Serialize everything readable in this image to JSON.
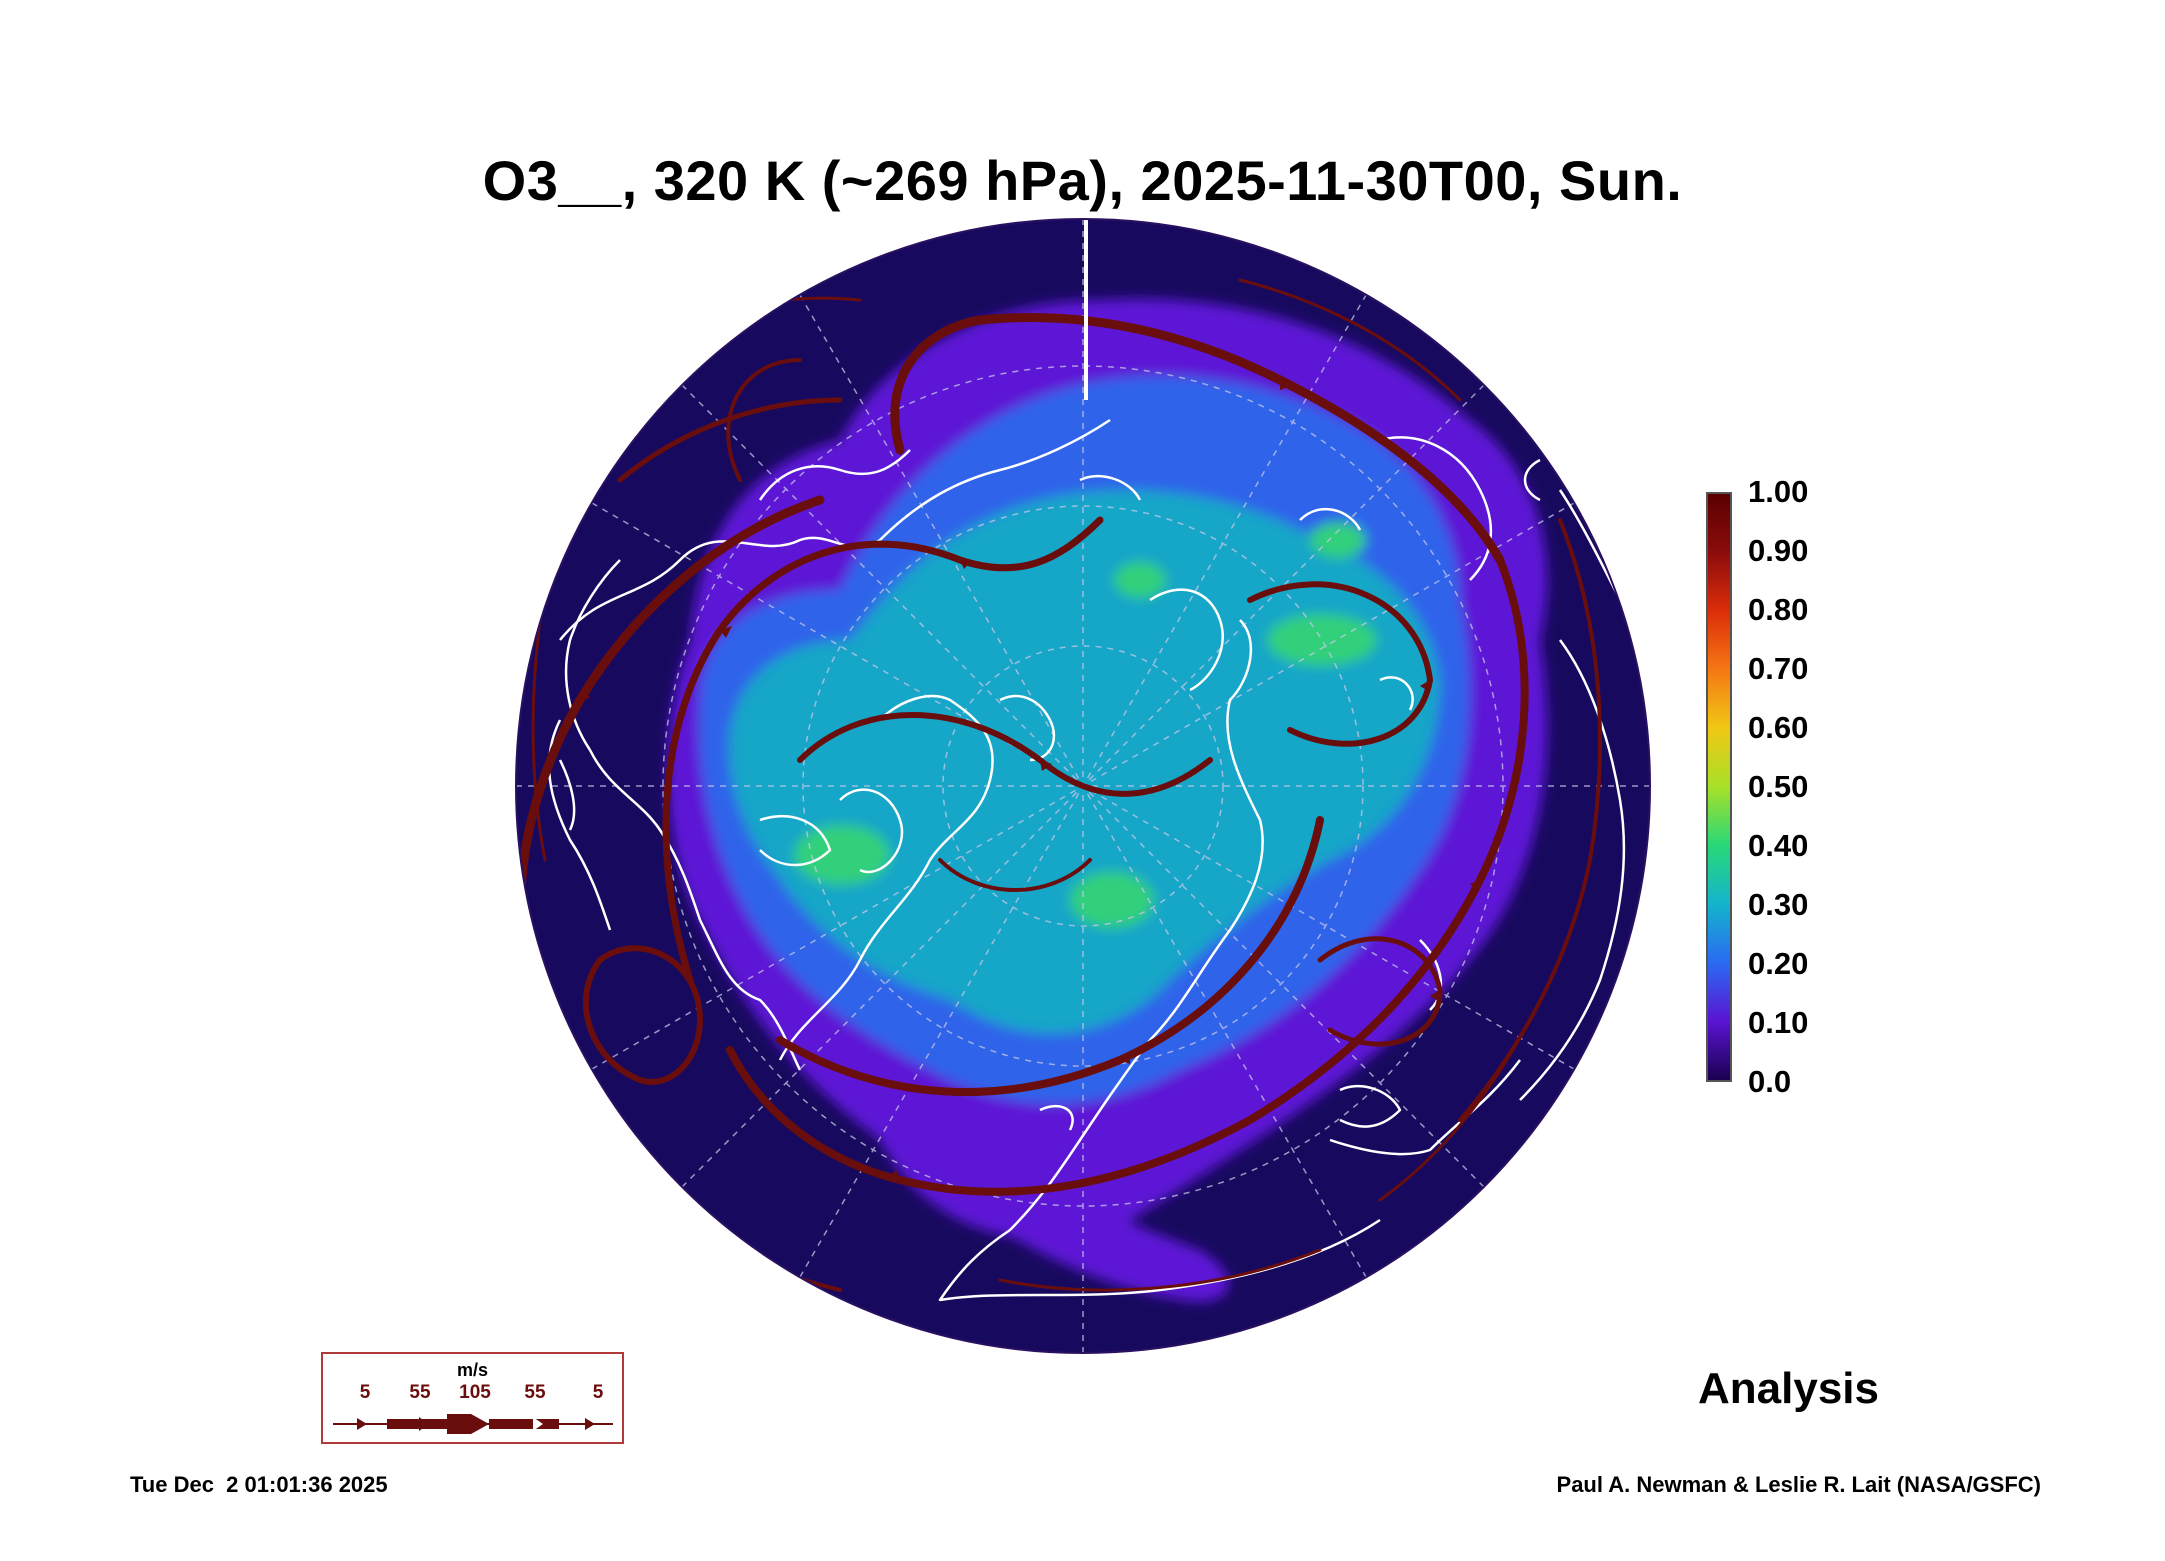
{
  "header": {
    "title": "O3__, 320 K (~269 hPa), 2025-11-30T00, Sun."
  },
  "colorbar": {
    "labels": [
      "1.00",
      "0.90",
      "0.80",
      "0.70",
      "0.60",
      "0.50",
      "0.40",
      "0.30",
      "0.20",
      "0.10",
      "0.0"
    ],
    "colors": [
      "#1a0050",
      "#5a14d2",
      "#2a6af2",
      "#14b4cc",
      "#28d878",
      "#a8e028",
      "#f0c814",
      "#f57814",
      "#dc2d0a",
      "#8c0c0c",
      "#5a0000"
    ]
  },
  "map": {
    "projection": "north-polar-stereographic",
    "field_colors": {
      "low": "#170a5e",
      "violet": "#5d18d6",
      "blue": "#2f63ea",
      "cyan": "#12a6c8",
      "green": "#32d07a"
    },
    "coastline_color": "#ffffff",
    "streamline_color": "#6a0d0d"
  },
  "wind_legend": {
    "unit": "m/s",
    "speeds": [
      "5",
      "55",
      "105",
      "55",
      "5"
    ]
  },
  "label": "Analysis",
  "footer": {
    "timestamp": "Tue Dec  2 01:01:36 2025",
    "credit": "Paul A. Newman & Leslie R. Lait (NASA/GSFC)"
  }
}
